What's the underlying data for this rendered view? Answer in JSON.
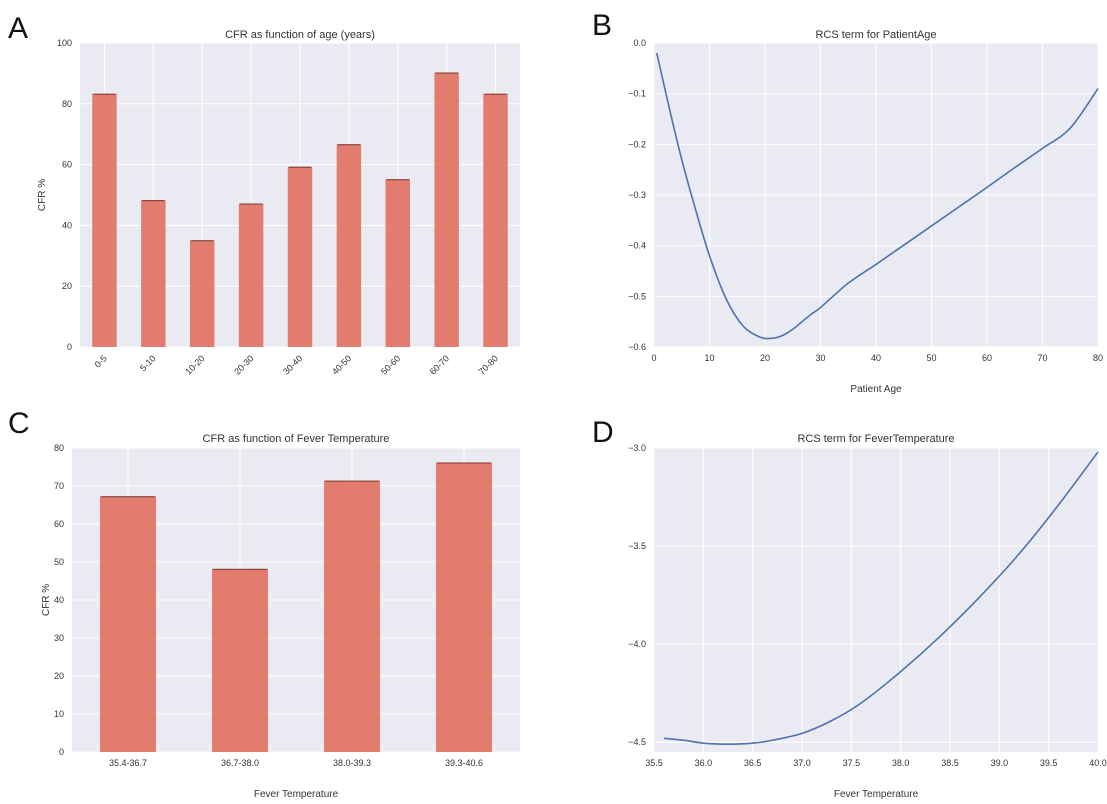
{
  "chart_data": [
    {
      "panel": "A",
      "type": "bar",
      "title": "CFR as function of age (years)",
      "xlabel": "",
      "ylabel": "CFR %",
      "categories": [
        "0-5",
        "5-10",
        "10-20",
        "20-30",
        "30-40",
        "40-50",
        "50-60",
        "60-70",
        "70-80"
      ],
      "values": [
        83.3,
        48.3,
        35.1,
        47.2,
        59.3,
        66.7,
        55.2,
        90.3,
        83.3
      ],
      "ylim": [
        0,
        100
      ],
      "yticks": [
        0,
        20,
        40,
        60,
        80,
        100
      ],
      "bar_color": "#E07060",
      "grid": true
    },
    {
      "panel": "B",
      "type": "line",
      "title": "RCS term for PatientAge",
      "xlabel": "Patient Age",
      "ylabel": "",
      "x": [
        0.5,
        3,
        5,
        7,
        10,
        13,
        16,
        19,
        21,
        23,
        25,
        28,
        30,
        35,
        40,
        45,
        50,
        55,
        60,
        65,
        70,
        75,
        80
      ],
      "y": [
        -0.02,
        -0.14,
        -0.23,
        -0.31,
        -0.42,
        -0.505,
        -0.558,
        -0.58,
        -0.583,
        -0.578,
        -0.565,
        -0.538,
        -0.522,
        -0.474,
        -0.437,
        -0.399,
        -0.361,
        -0.323,
        -0.285,
        -0.246,
        -0.208,
        -0.168,
        -0.09
      ],
      "xlim": [
        0,
        80
      ],
      "ylim": [
        -0.6,
        0.0
      ],
      "xticks": [
        0,
        10,
        20,
        30,
        40,
        50,
        60,
        70,
        80
      ],
      "yticks": [
        "0.0",
        "−0.1",
        "−0.2",
        "−0.3",
        "−0.4",
        "−0.5",
        "−0.6"
      ],
      "line_color": "#4C72B0",
      "grid": true
    },
    {
      "panel": "C",
      "type": "bar",
      "title": "CFR as function of Fever Temperature",
      "xlabel": "Fever Temperature",
      "ylabel": "CFR %",
      "categories": [
        "35.4-36.7",
        "36.7-38.0",
        "38.0-39.3",
        "39.3-40.6"
      ],
      "values": [
        67.3,
        48.2,
        71.4,
        76.2
      ],
      "ylim": [
        0,
        80
      ],
      "yticks": [
        0,
        10,
        20,
        30,
        40,
        50,
        60,
        70,
        80
      ],
      "bar_color": "#E07060",
      "grid": true
    },
    {
      "panel": "D",
      "type": "line",
      "title": "RCS term for FeverTemperature",
      "xlabel": "Fever Temperature",
      "ylabel": "",
      "x": [
        35.6,
        35.8,
        36.0,
        36.2,
        36.3,
        36.5,
        36.7,
        37.0,
        37.3,
        37.6,
        38.0,
        38.4,
        38.8,
        39.2,
        39.6,
        40.0
      ],
      "y": [
        -4.48,
        -4.49,
        -4.505,
        -4.51,
        -4.51,
        -4.505,
        -4.49,
        -4.455,
        -4.39,
        -4.3,
        -4.14,
        -3.96,
        -3.76,
        -3.54,
        -3.29,
        -3.02
      ],
      "xlim": [
        35.5,
        40.0
      ],
      "ylim": [
        -4.55,
        -3.0
      ],
      "xticks": [
        "35.5",
        "36.0",
        "36.5",
        "37.0",
        "37.5",
        "38.0",
        "38.5",
        "39.0",
        "39.5",
        "40.0"
      ],
      "yticks": [
        "−3.0",
        "−3.5",
        "−4.0",
        "−4.5"
      ],
      "line_color": "#4C72B0",
      "grid": true
    }
  ],
  "colors": {
    "plot_bg": "#EAEAF2",
    "grid": "#FFFFFF"
  }
}
